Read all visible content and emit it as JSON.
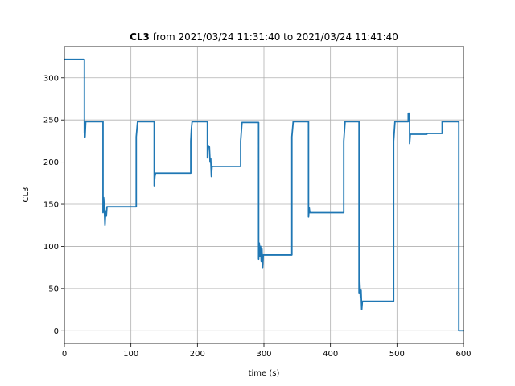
{
  "chart_data": {
    "type": "line",
    "title_bold": "CL3",
    "title_rest": " from 2021/03/24 11:31:40 to 2021/03/24 11:41:40",
    "xlabel": "time (s)",
    "ylabel": "CL3",
    "xlim": [
      0,
      600
    ],
    "ylim": [
      -15,
      337
    ],
    "xticks": [
      0,
      100,
      200,
      300,
      400,
      500,
      600
    ],
    "yticks": [
      0,
      50,
      100,
      150,
      200,
      250,
      300
    ],
    "grid": true,
    "color": "#1f77b4",
    "series": [
      {
        "points": [
          [
            0,
            322
          ],
          [
            30,
            322
          ],
          [
            30,
            235
          ],
          [
            31,
            230
          ],
          [
            32,
            248
          ],
          [
            58,
            248
          ],
          [
            58,
            140
          ],
          [
            59,
            158
          ],
          [
            60,
            145
          ],
          [
            61,
            125
          ],
          [
            62,
            142
          ],
          [
            63,
            136
          ],
          [
            64,
            147
          ],
          [
            108,
            147
          ],
          [
            108,
            230
          ],
          [
            110,
            248
          ],
          [
            135,
            248
          ],
          [
            135,
            172
          ],
          [
            136,
            183
          ],
          [
            137,
            187
          ],
          [
            190,
            187
          ],
          [
            190,
            225
          ],
          [
            191,
            240
          ],
          [
            192,
            248
          ],
          [
            215,
            248
          ],
          [
            215,
            205
          ],
          [
            216,
            220
          ],
          [
            218,
            218
          ],
          [
            219,
            200
          ],
          [
            220,
            204
          ],
          [
            221,
            183
          ],
          [
            222,
            195
          ],
          [
            265,
            195
          ],
          [
            265,
            225
          ],
          [
            267,
            247
          ],
          [
            292,
            247
          ],
          [
            292,
            85
          ],
          [
            293,
            104
          ],
          [
            294,
            88
          ],
          [
            295,
            100
          ],
          [
            296,
            82
          ],
          [
            297,
            97
          ],
          [
            298,
            75
          ],
          [
            299,
            90
          ],
          [
            342,
            90
          ],
          [
            342,
            230
          ],
          [
            344,
            248
          ],
          [
            367,
            248
          ],
          [
            367,
            135
          ],
          [
            368,
            146
          ],
          [
            369,
            140
          ],
          [
            420,
            140
          ],
          [
            420,
            225
          ],
          [
            422,
            248
          ],
          [
            443,
            248
          ],
          [
            443,
            45
          ],
          [
            444,
            60
          ],
          [
            445,
            40
          ],
          [
            446,
            48
          ],
          [
            447,
            25
          ],
          [
            448,
            35
          ],
          [
            495,
            35
          ],
          [
            495,
            225
          ],
          [
            497,
            248
          ],
          [
            517,
            248
          ],
          [
            517,
            258
          ],
          [
            519,
            258
          ],
          [
            519,
            222
          ],
          [
            520,
            233
          ],
          [
            545,
            233
          ],
          [
            545,
            234
          ],
          [
            568,
            234
          ],
          [
            568,
            248
          ],
          [
            593,
            248
          ],
          [
            593,
            0
          ],
          [
            600,
            0
          ]
        ]
      }
    ]
  }
}
